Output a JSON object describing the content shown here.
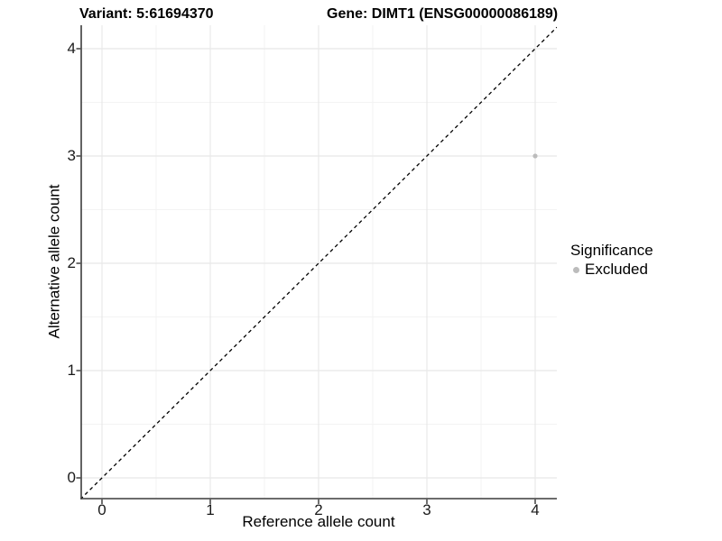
{
  "chart_data": {
    "type": "scatter",
    "title_left": "Variant: 5:61694370",
    "title_right": "Gene: DIMT1 (ENSG00000086189)",
    "xlabel": "Reference allele count",
    "ylabel": "Alternative allele count",
    "xlim": [
      -0.2,
      4.2
    ],
    "ylim": [
      -0.2,
      4.2
    ],
    "x_ticks": [
      0,
      1,
      2,
      3,
      4
    ],
    "y_ticks": [
      0,
      1,
      2,
      3,
      4
    ],
    "x_tick_labels": [
      "0",
      "1",
      "2",
      "3",
      "4"
    ],
    "y_tick_labels": [
      "0",
      "1",
      "2",
      "3",
      "4"
    ],
    "grid": "major and minor gridlines on white background",
    "legend_position": "right",
    "identity_line": {
      "style": "dashed",
      "color": "#000000",
      "from": [
        -0.2,
        -0.2
      ],
      "to": [
        4.2,
        4.2
      ]
    },
    "series": [
      {
        "name": "Excluded",
        "color": "#bcbcbc",
        "points": [
          [
            4,
            3
          ]
        ]
      }
    ],
    "legend": {
      "title": "Significance",
      "items": [
        {
          "label": "Excluded",
          "color": "#bcbcbc"
        }
      ]
    }
  },
  "style": {
    "background": "#ffffff",
    "grid_major_color": "#e8e8e8",
    "grid_minor_color": "#f3f3f3",
    "axis_line_color": "#3c3c3c",
    "tick_mark_color": "#333333",
    "tick_text_color": "#1a1a1a",
    "title_color": "#000000",
    "point_color": "#bcbcbc"
  }
}
